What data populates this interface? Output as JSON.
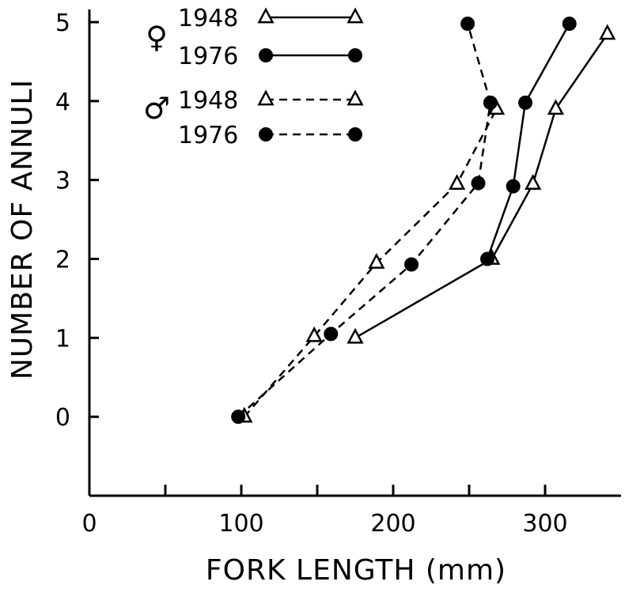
{
  "chart_data": {
    "type": "line",
    "xlabel": "FORK LENGTH (mm)",
    "ylabel": "NUMBER OF ANNULI",
    "xlim": [
      0,
      350
    ],
    "ylim": [
      -1,
      5
    ],
    "xticks": [
      {
        "value": 0,
        "label": "0"
      },
      {
        "value": 50,
        "label": ""
      },
      {
        "value": 100,
        "label": "100"
      },
      {
        "value": 150,
        "label": ""
      },
      {
        "value": 200,
        "label": "200"
      },
      {
        "value": 250,
        "label": ""
      },
      {
        "value": 300,
        "label": "300"
      }
    ],
    "yticks": [
      {
        "value": 0,
        "label": "0"
      },
      {
        "value": 1,
        "label": "1"
      },
      {
        "value": 2,
        "label": "2"
      },
      {
        "value": 3,
        "label": "3"
      },
      {
        "value": 4,
        "label": "4"
      },
      {
        "value": 5,
        "label": "5"
      }
    ],
    "grid": false,
    "legend_position": "top-left",
    "legend_groups": [
      {
        "symbol": "♀",
        "series": [
          0,
          1
        ]
      },
      {
        "symbol": "♂",
        "series": [
          2,
          3
        ]
      }
    ],
    "series": [
      {
        "name": "1948",
        "marker": "triangle",
        "dash": "solid",
        "points": [
          [
            175,
            1
          ],
          [
            265,
            2
          ],
          [
            292,
            2.95
          ],
          [
            307,
            3.9
          ],
          [
            341,
            4.85
          ]
        ]
      },
      {
        "name": "1976",
        "marker": "circle",
        "dash": "solid",
        "points": [
          [
            262,
            2
          ],
          [
            279,
            2.92
          ],
          [
            287,
            3.98
          ],
          [
            316,
            4.98
          ]
        ]
      },
      {
        "name": "1948",
        "marker": "triangle",
        "dash": "dashed",
        "points": [
          [
            102,
            0
          ],
          [
            148,
            1.02
          ],
          [
            189,
            1.95
          ],
          [
            242,
            2.95
          ],
          [
            268,
            3.9
          ]
        ]
      },
      {
        "name": "1976",
        "marker": "circle",
        "dash": "dashed",
        "points": [
          [
            98,
            0
          ],
          [
            159,
            1.05
          ],
          [
            212,
            1.93
          ],
          [
            256,
            2.96
          ],
          [
            264,
            3.98
          ],
          [
            249,
            4.98
          ]
        ]
      }
    ]
  }
}
